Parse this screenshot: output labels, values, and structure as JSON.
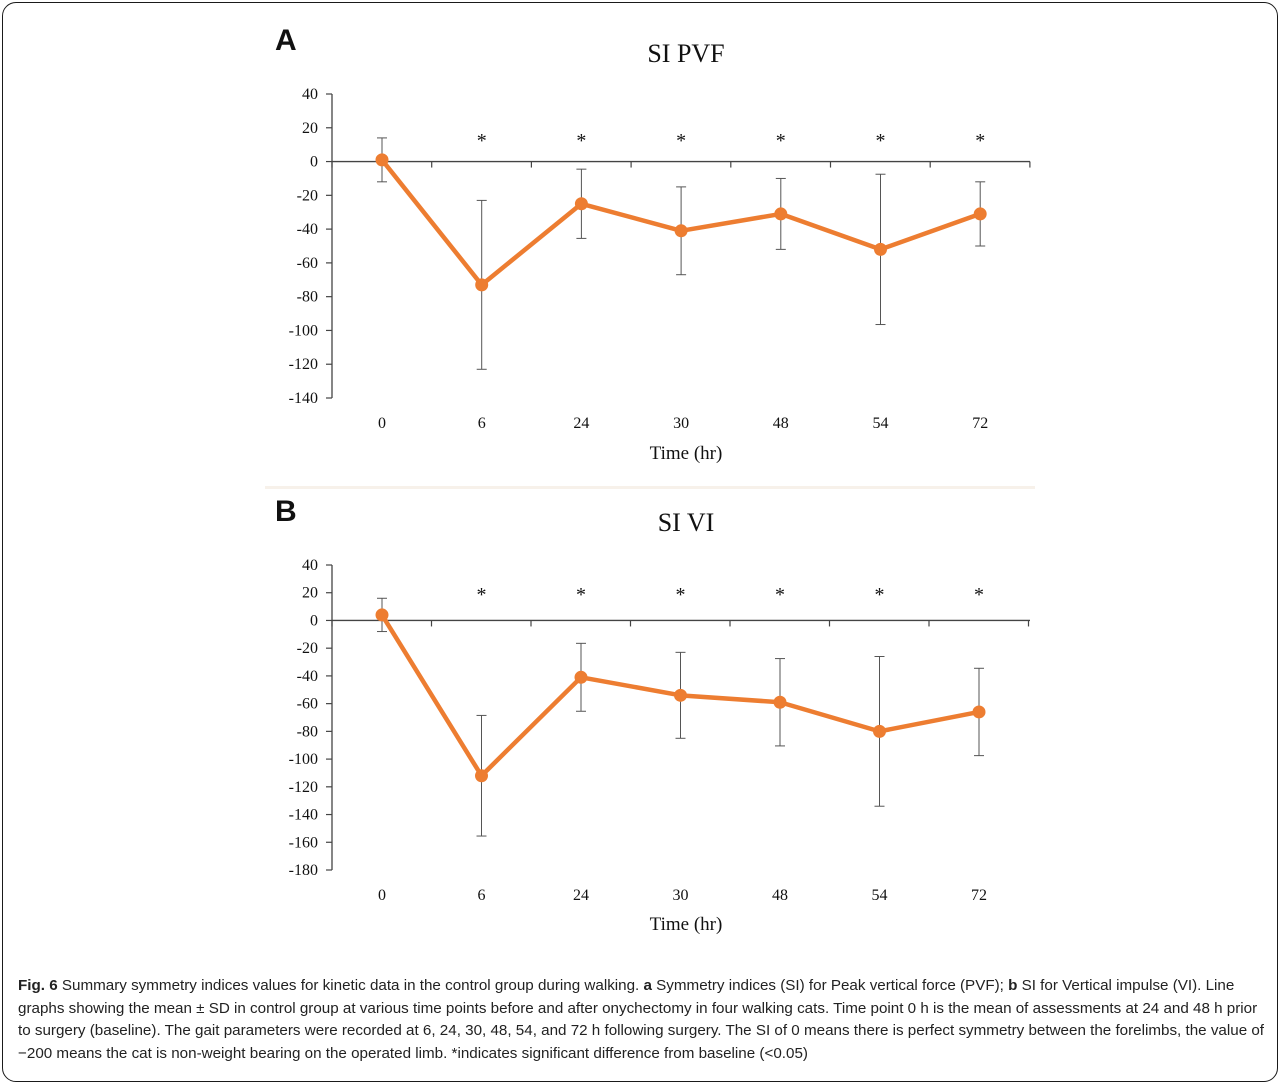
{
  "panels": {
    "a_letter": "A",
    "b_letter": "B"
  },
  "colors": {
    "series": "#ed7d31",
    "axis": "#444444",
    "errorbar": "#555555"
  },
  "chart_data": [
    {
      "type": "line",
      "title": "SI PVF",
      "xlabel": "Time (hr)",
      "ylabel": "",
      "categories": [
        "0",
        "6",
        "24",
        "30",
        "48",
        "54",
        "72"
      ],
      "ylim": [
        -140,
        40
      ],
      "yticks": [
        40,
        20,
        0,
        -20,
        -40,
        -60,
        -80,
        -100,
        -120,
        -140
      ],
      "grid": false,
      "series": [
        {
          "values": [
            1,
            -73,
            -25,
            -41,
            -31,
            -52,
            -31
          ],
          "sd": [
            13,
            50,
            20.5,
            26,
            21,
            44.5,
            19
          ]
        }
      ],
      "annotations": [
        "",
        "*",
        "*",
        "*",
        "*",
        "*",
        "*"
      ]
    },
    {
      "type": "line",
      "title": "SI VI",
      "xlabel": "Time (hr)",
      "ylabel": "",
      "categories": [
        "0",
        "6",
        "24",
        "30",
        "48",
        "54",
        "72"
      ],
      "ylim": [
        -180,
        40
      ],
      "yticks": [
        40,
        20,
        0,
        -20,
        -40,
        -60,
        -80,
        -100,
        -120,
        -140,
        -160,
        -180
      ],
      "grid": false,
      "series": [
        {
          "values": [
            4,
            -112,
            -41,
            -54,
            -59,
            -80,
            -66
          ],
          "sd": [
            12,
            43.5,
            24.5,
            31,
            31.5,
            54,
            31.5
          ]
        }
      ],
      "annotations": [
        "",
        "*",
        "*",
        "*",
        "*",
        "*",
        "*"
      ]
    }
  ],
  "caption": {
    "fig_label": "Fig. 6",
    "text1": " Summary symmetry indices values for kinetic data in the control group during walking. ",
    "a": "a",
    "text2": " Symmetry indices (SI) for Peak vertical force (PVF); ",
    "b": "b",
    "text3": " SI for Vertical impulse (VI). Line graphs showing the mean ± SD in control group at various time points before and after onychectomy in four walking cats. Time point 0 h is the mean of assessments at 24 and 48 h prior to surgery (baseline). The gait parameters were recorded at 6, 24, 30, 48, 54, and 72 h following surgery. The SI of 0 means there is perfect symmetry between the forelimbs, the value of −200 means the cat is non-weight bearing on the operated limb. *indicates significant difference from baseline (<0.05)"
  }
}
